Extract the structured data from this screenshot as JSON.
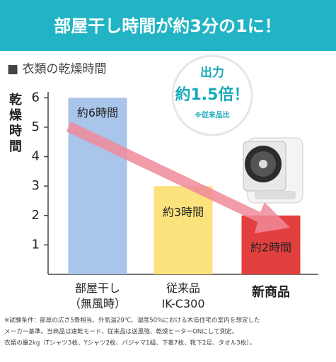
{
  "banner": "部屋干し時間が約3分の1に！",
  "badge": {
    "line1": "出力",
    "line2": "約1.5倍！",
    "note": "※従来品比"
  },
  "chart_data": {
    "type": "bar",
    "title": "■ 衣類の乾燥時間",
    "y_label": "乾燥時間",
    "categories": [
      "部屋干し\n（無風時）",
      "従来品\nIK-C300",
      "新商品"
    ],
    "values": [
      6,
      3,
      2
    ],
    "value_labels": [
      "約6時間",
      "約3時間",
      "約2時間"
    ],
    "colors": [
      "#a9c5ea",
      "#fbe27c",
      "#e2403e"
    ],
    "ylim": [
      0,
      6.2
    ],
    "yticks": [
      1,
      2,
      3,
      4,
      5,
      6
    ],
    "grid": false
  },
  "footnote": [
    "※試験条件：部屋の広さ5畳相当、外気温20℃、湿度50%における木造住宅の室内を想定した",
    "メーカー基準。当商品は速乾モード、従来品は送風強、乾燥ヒーターONにして測定。",
    "衣類の量2kg（Tシャツ3枚、Yシャツ2枚、パジャマ1組、下着7枚、靴下2足、タオル3枚）。"
  ]
}
